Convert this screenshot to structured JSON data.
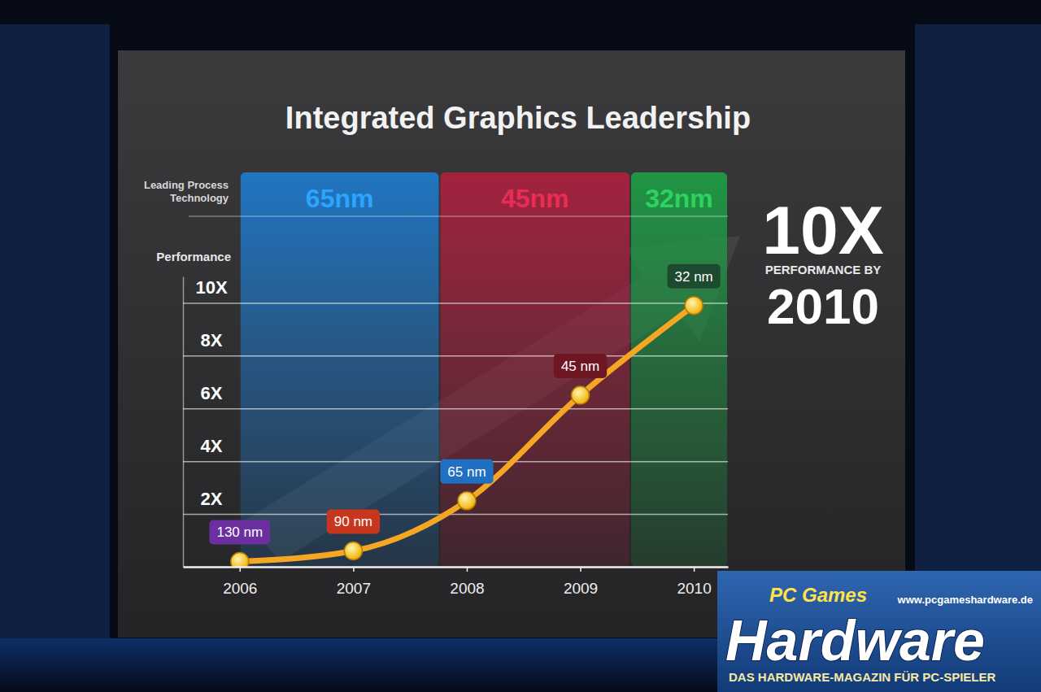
{
  "chart_data": {
    "type": "line",
    "title": "Integrated Graphics Leadership",
    "y_label": "Performance",
    "band_label": "Leading Process Technology",
    "x": [
      2006,
      2007,
      2008,
      2009,
      2010
    ],
    "xlim": [
      2005.5,
      2010.3
    ],
    "xticks": [
      2006,
      2007,
      2008,
      2009,
      2010
    ],
    "values": [
      0.2,
      0.6,
      2.5,
      6.5,
      9.9
    ],
    "color": "#f5a623",
    "marker": "circle",
    "ylim": [
      0,
      11
    ],
    "yticks": [
      {
        "value": 2,
        "label": "2X"
      },
      {
        "value": 4,
        "label": "4X"
      },
      {
        "value": 6,
        "label": "6X"
      },
      {
        "value": 8,
        "label": "8X"
      },
      {
        "value": 10,
        "label": "10X"
      }
    ],
    "grid": true,
    "point_labels": [
      "130 nm",
      "90 nm",
      "65 nm",
      "45 nm",
      "32 nm"
    ],
    "point_label_colors": [
      "#6b2fa0",
      "#c8361e",
      "#1f70c0",
      "#6e1622",
      "#1e4a30"
    ],
    "process_bands": [
      {
        "label": "65nm",
        "start": 2006,
        "end": 2007.76,
        "color": "#1f78c8"
      },
      {
        "label": "45nm",
        "start": 2007.76,
        "end": 2009.44,
        "color": "#a8213e"
      },
      {
        "label": "32nm",
        "start": 2009.44,
        "end": 2010.3,
        "color": "#1f9a45"
      }
    ],
    "annotation": {
      "headline": "10X",
      "text": "PERFORMANCE BY",
      "year": "2010"
    }
  },
  "watermark": {
    "brand_top": "PC Games",
    "brand": "Hardware",
    "url": "www.pcgameshardware.de",
    "tagline": "DAS HARDWARE-MAGAZIN FÜR PC-SPIELER"
  }
}
